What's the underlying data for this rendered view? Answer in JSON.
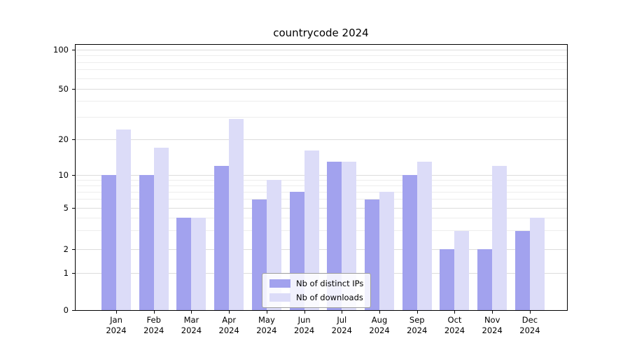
{
  "chart_data": {
    "type": "bar",
    "title": "countrycode 2024",
    "categories": [
      "Jan 2024",
      "Feb 2024",
      "Mar 2024",
      "Apr 2024",
      "May 2024",
      "Jun 2024",
      "Jul 2024",
      "Aug 2024",
      "Sep 2024",
      "Oct 2024",
      "Nov 2024",
      "Dec 2024"
    ],
    "series": [
      {
        "name": "Nb of distinct IPs",
        "color": "#a2a2ee",
        "values": [
          10,
          10,
          4,
          12,
          6,
          7,
          13,
          6,
          10,
          2,
          2,
          3
        ]
      },
      {
        "name": "Nb of downloads",
        "color": "#dcdcf8",
        "values": [
          24,
          17,
          4,
          29,
          9,
          16,
          13,
          7,
          13,
          3,
          12,
          4
        ]
      }
    ],
    "yscale": "symlog",
    "y_ticks": [
      0,
      1,
      2,
      5,
      10,
      20,
      50,
      100
    ],
    "ylim": [
      0,
      100
    ],
    "xlabel": "",
    "ylabel": "",
    "grid": true,
    "legend_position": "lower center",
    "colors": {
      "grid_major": "#dcdcdc",
      "grid_minor": "#ededed",
      "spine": "#000000",
      "background": "#ffffff"
    }
  }
}
